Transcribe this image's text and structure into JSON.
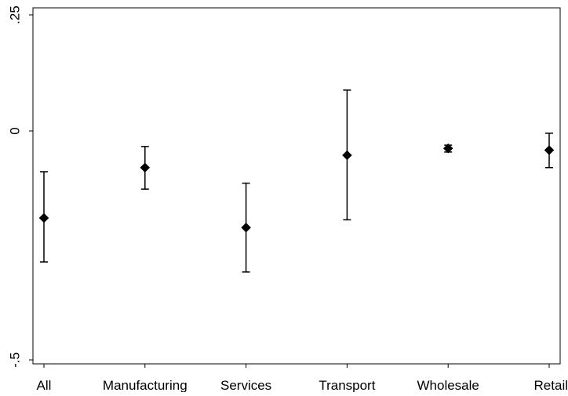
{
  "chart_data": {
    "type": "scatter",
    "subtype": "point-estimate-with-error-bars",
    "title": "",
    "xlabel": "",
    "ylabel": "",
    "categories": [
      "All",
      "Manufacturing",
      "Services",
      "Transport",
      "Wholesale",
      "Retail"
    ],
    "points": [
      {
        "category": "All",
        "estimate": -0.19,
        "lower": -0.286,
        "upper": -0.089
      },
      {
        "category": "Manufacturing",
        "estimate": -0.08,
        "lower": -0.127,
        "upper": -0.034
      },
      {
        "category": "Services",
        "estimate": -0.211,
        "lower": -0.308,
        "upper": -0.114
      },
      {
        "category": "Transport",
        "estimate": -0.053,
        "lower": -0.194,
        "upper": 0.088
      },
      {
        "category": "Wholesale",
        "estimate": -0.038,
        "lower": -0.046,
        "upper": -0.031
      },
      {
        "category": "Retail",
        "estimate": -0.042,
        "lower": -0.08,
        "upper": -0.005
      }
    ],
    "y_ticks": [
      {
        "value": -0.5,
        "label": "-.5"
      },
      {
        "value": 0,
        "label": "0"
      },
      {
        "value": 0.25,
        "label": ".25"
      }
    ],
    "ylim": [
      -0.5,
      0.25
    ],
    "grid": false,
    "legend": "none",
    "marker": "diamond",
    "colors": {
      "marker": "#000000",
      "axis": "#000000",
      "background": "#ffffff"
    }
  }
}
